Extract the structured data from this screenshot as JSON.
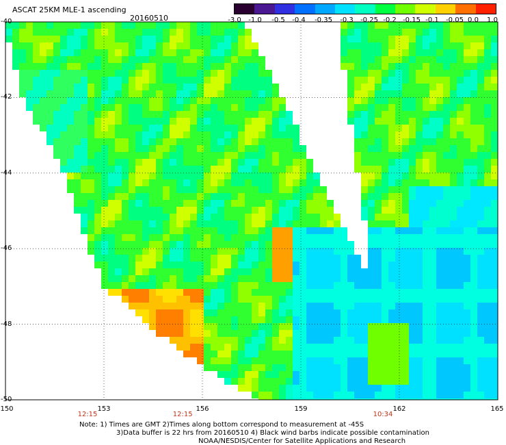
{
  "header": {
    "title": "ASCAT 25KM MLE-1 ascending",
    "date": "20160510"
  },
  "colorbar": {
    "labels": [
      "-3.0",
      "-1.0",
      "-0.5",
      "-0.4",
      "-0.35",
      "-0.3",
      "-0.25",
      "-0.2",
      "-0.15",
      "-0.1",
      "-0.05",
      "0.0",
      "1.0"
    ],
    "colors": [
      "#2a0030",
      "#4a1890",
      "#3030e0",
      "#0070ff",
      "#00a8ff",
      "#00e0ff",
      "#00ffc0",
      "#00ff40",
      "#70ff00",
      "#d0ff00",
      "#ffd000",
      "#ff7000",
      "#ff2000"
    ]
  },
  "axes": {
    "lon_labels": [
      "150",
      "153",
      "156",
      "159",
      "162",
      "165"
    ],
    "lon_values": [
      150,
      153,
      156,
      159,
      162,
      165
    ],
    "lat_labels": [
      "-40",
      "-42",
      "-44",
      "-46",
      "-48",
      "-50"
    ],
    "lat_values": [
      -40,
      -42,
      -44,
      -46,
      -48,
      -50
    ]
  },
  "times": [
    {
      "label": "12:15",
      "lon": 152.5
    },
    {
      "label": "12:15",
      "lon": 155.4
    },
    {
      "label": "10:34",
      "lon": 161.5
    }
  ],
  "notes": {
    "line1": "Note: 1) Times are GMT 2)Times along bottom correspond to measurement at -45S",
    "line2": "3)Data buffer is 22 hrs from 20160510 4) Black wind barbs indicate possible contamination",
    "line3": "NOAA/NESDIS/Center for Satellite Applications and Research"
  }
}
